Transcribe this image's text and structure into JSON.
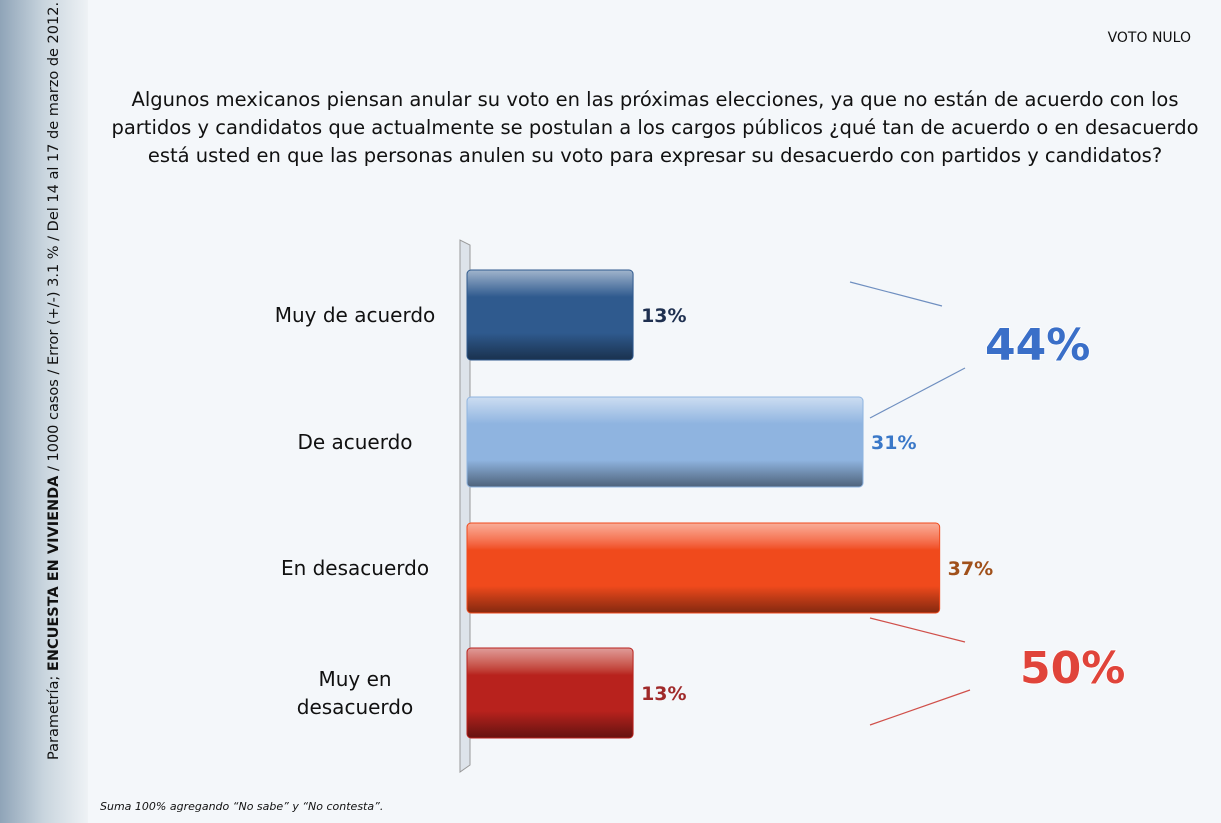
{
  "chart_data": {
    "type": "bar",
    "corner_label": "VOTO NULO",
    "title": "Algunos mexicanos piensan anular su voto en las próximas elecciones, ya que no están de acuerdo con los partidos y candidatos que actualmente se postulan a los cargos públicos ¿qué tan de acuerdo o en desacuerdo está usted en que las personas anulen su voto para expresar su desacuerdo con partidos y candidatos?",
    "source_prefix": "Parametría; ",
    "source_bold": "ENCUESTA EN VIVIENDA",
    "source_rest": " / 1000 casos / Error (+/-) 3.1 % / Del 14 al 17 de marzo de 2012.",
    "categories": [
      "Muy de acuerdo",
      "De acuerdo",
      "En desacuerdo",
      "Muy en desacuerdo"
    ],
    "values": [
      13,
      31,
      37,
      13
    ],
    "value_labels": [
      "13%",
      "31%",
      "37%",
      "13%"
    ],
    "colors": [
      "#2f5a8e",
      "#8fb4e0",
      "#f04a1c",
      "#b8221d"
    ],
    "label_colors": [
      "#1f3050",
      "#3a78c8",
      "#a0501a",
      "#a02a2a"
    ],
    "xlim": [
      0,
      40
    ],
    "annotations": [
      {
        "value": 44,
        "label": "44%",
        "color": "#3a6fc8"
      },
      {
        "value": 50,
        "label": "50%",
        "color": "#e0443a"
      }
    ],
    "footnote": "Suma 100%  agregando “No sabe” y “No contesta”."
  }
}
